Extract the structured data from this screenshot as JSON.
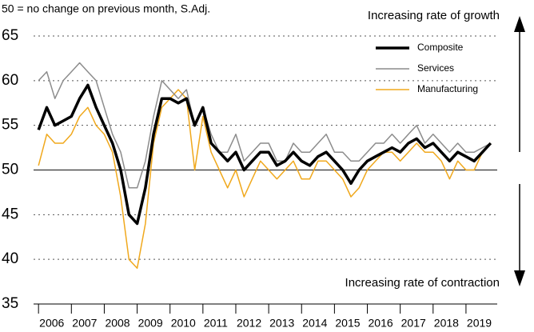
{
  "chart_data": {
    "type": "line",
    "subtitle": "50 = no change on previous month, S.Adj.",
    "annotations": [
      "Increasing rate of growth",
      "Increasing rate of contraction"
    ],
    "x": [
      2006.0,
      2006.25,
      2006.5,
      2006.75,
      2007.0,
      2007.25,
      2007.5,
      2007.75,
      2008.0,
      2008.25,
      2008.5,
      2008.75,
      2009.0,
      2009.25,
      2009.5,
      2009.75,
      2010.0,
      2010.25,
      2010.5,
      2010.75,
      2011.0,
      2011.25,
      2011.5,
      2011.75,
      2012.0,
      2012.25,
      2012.5,
      2012.75,
      2013.0,
      2013.25,
      2013.5,
      2013.75,
      2014.0,
      2014.25,
      2014.5,
      2014.75,
      2015.0,
      2015.25,
      2015.5,
      2015.75,
      2016.0,
      2016.25,
      2016.5,
      2016.75,
      2017.0,
      2017.25,
      2017.5,
      2017.75,
      2018.0,
      2018.25,
      2018.5,
      2018.75,
      2019.0,
      2019.25,
      2019.5,
      2019.75
    ],
    "series": [
      {
        "name": "Composite",
        "color": "#000000",
        "width": 3.5,
        "values": [
          54.5,
          57,
          55,
          55.5,
          56,
          58,
          59.5,
          57,
          55,
          53,
          50,
          45,
          44,
          48,
          54,
          58,
          58,
          57.5,
          58,
          55,
          57,
          53,
          52,
          51,
          52,
          50,
          51,
          52,
          52,
          50.5,
          51,
          52,
          51,
          50.5,
          51.5,
          52,
          51,
          50,
          48.5,
          50,
          51,
          51.5,
          52,
          52.5,
          52,
          53,
          53.5,
          52.5,
          53,
          52,
          51,
          52,
          51.5,
          51,
          52,
          53
        ]
      },
      {
        "name": "Services",
        "color": "#8c8c8c",
        "width": 1.5,
        "values": [
          60,
          61,
          58,
          60,
          61,
          62,
          61,
          60,
          57,
          54,
          52,
          48,
          48,
          51,
          56,
          60,
          59,
          58,
          59,
          55,
          57,
          54,
          52,
          52,
          54,
          51,
          52,
          53,
          53,
          51,
          51,
          53,
          52,
          52,
          53,
          54,
          52,
          52,
          51,
          51,
          52,
          53,
          53,
          54,
          53,
          54,
          55,
          53,
          54,
          53,
          52,
          53,
          52,
          52,
          52.5,
          53
        ]
      },
      {
        "name": "Manufacturing",
        "color": "#f0a81c",
        "width": 1.5,
        "values": [
          50.5,
          54,
          53,
          53,
          54,
          56,
          57,
          55,
          54,
          52,
          47,
          40,
          39,
          44,
          53,
          57,
          58,
          59,
          58,
          50,
          56,
          52,
          50,
          48,
          50,
          47,
          49,
          51,
          50,
          49,
          50,
          51,
          49,
          49,
          51,
          51,
          50,
          49,
          47,
          48,
          50,
          51,
          52,
          52,
          51,
          52,
          53,
          52,
          52,
          51,
          49,
          51,
          50,
          50,
          52,
          53
        ]
      }
    ],
    "xlim": [
      2005.85,
      2019.95
    ],
    "xticks": [
      2006,
      2007,
      2008,
      2009,
      2010,
      2011,
      2012,
      2013,
      2014,
      2015,
      2016,
      2017,
      2018,
      2019
    ],
    "ylim": [
      35,
      65
    ],
    "yticks": [
      35,
      40,
      45,
      50,
      55,
      60,
      65
    ],
    "hline": 50,
    "grid": true,
    "legend": "upper right"
  }
}
